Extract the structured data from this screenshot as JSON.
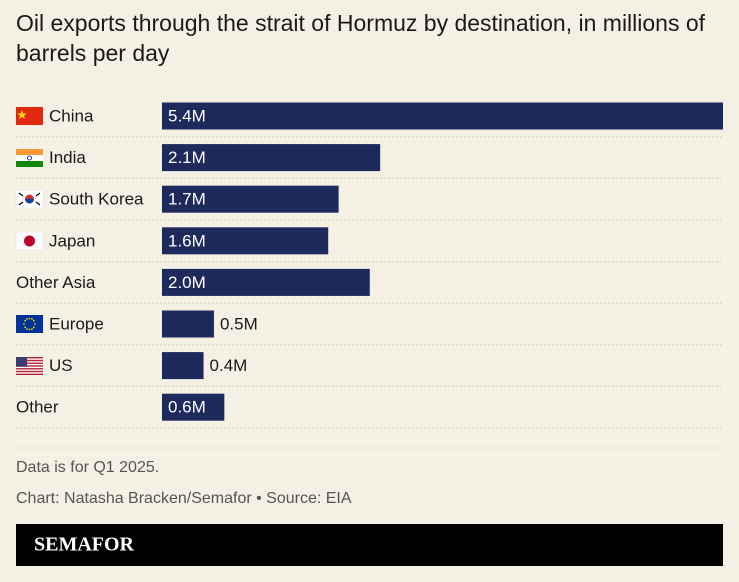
{
  "chart_data": {
    "type": "bar",
    "orientation": "horizontal",
    "title": "Oil exports through the strait of Hormuz by destination, in millions of barrels per day",
    "categories": [
      "China",
      "India",
      "South Korea",
      "Japan",
      "Other Asia",
      "Europe",
      "US",
      "Other"
    ],
    "values": [
      5.4,
      2.1,
      1.7,
      1.6,
      2.0,
      0.5,
      0.4,
      0.6
    ],
    "value_labels": [
      "5.4M",
      "2.1M",
      "1.7M",
      "1.6M",
      "2.0M",
      "0.5M",
      "0.4M",
      "0.6M"
    ],
    "color": "#1f2a5c",
    "note": "Data is for Q1 2025.",
    "source": "Chart: Natasha Bracken/Semafor • Source: EIA",
    "brand": "SEMAFOR"
  }
}
